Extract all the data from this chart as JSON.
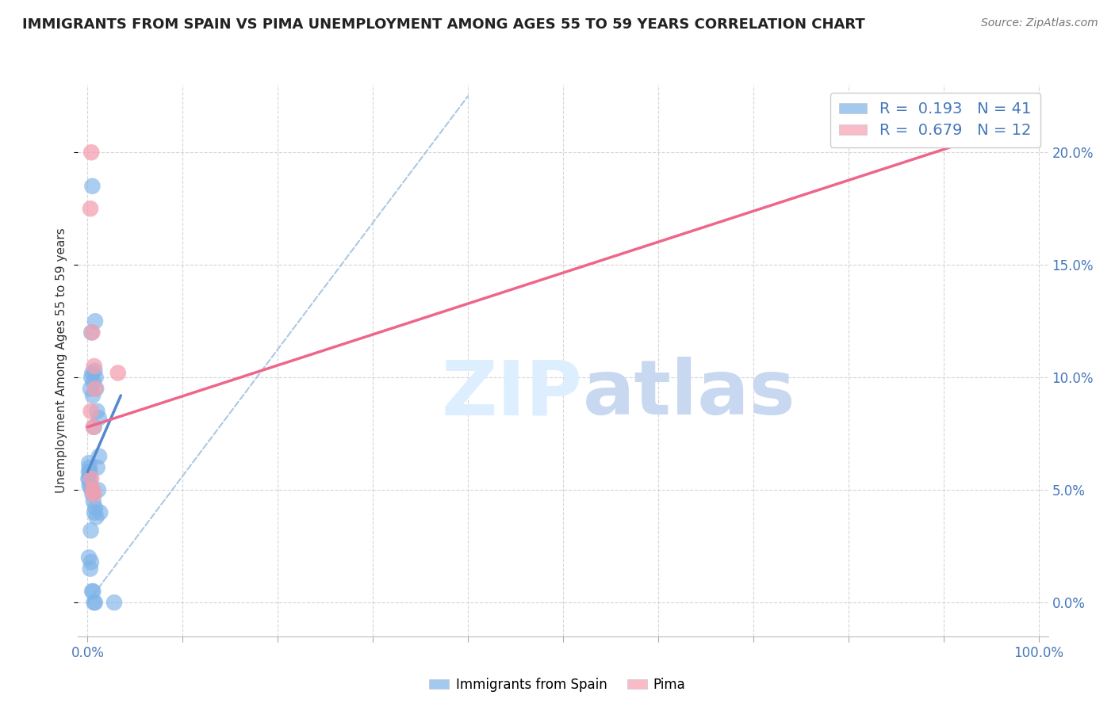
{
  "title": "IMMIGRANTS FROM SPAIN VS PIMA UNEMPLOYMENT AMONG AGES 55 TO 59 YEARS CORRELATION CHART",
  "source": "Source: ZipAtlas.com",
  "ylabel": "Unemployment Among Ages 55 to 59 years",
  "legend_label1": "Immigrants from Spain",
  "legend_label2": "Pima",
  "R1": 0.193,
  "N1": 41,
  "R2": 0.679,
  "N2": 12,
  "xlim": [
    -1.0,
    101.0
  ],
  "ylim": [
    -1.5,
    23.0
  ],
  "x_ticks": [
    0.0,
    10.0,
    20.0,
    30.0,
    40.0,
    50.0,
    60.0,
    70.0,
    80.0,
    90.0,
    100.0
  ],
  "x_tick_labels": [
    "0.0%",
    "",
    "",
    "",
    "",
    "",
    "",
    "",
    "",
    "",
    "100.0%"
  ],
  "y_ticks": [
    0.0,
    5.0,
    10.0,
    15.0,
    20.0
  ],
  "color_blue": "#7EB3E8",
  "color_pink": "#F4A0B0",
  "color_blue_line": "#5588CC",
  "color_pink_line": "#EE6688",
  "color_dashed": "#99BBDD",
  "color_title": "#222222",
  "color_source": "#777777",
  "color_watermark": "#DDEEFF",
  "blue_points_x": [
    0.5,
    0.8,
    0.4,
    0.6,
    0.9,
    1.2,
    0.5,
    0.4,
    0.3,
    0.55,
    0.7,
    0.75,
    0.85,
    1.0,
    0.2,
    0.25,
    0.22,
    0.32,
    0.42,
    0.52,
    0.62,
    0.72,
    0.82,
    0.92,
    1.02,
    1.12,
    1.22,
    1.32,
    0.15,
    0.12,
    0.08,
    0.18,
    0.28,
    0.38,
    0.48,
    0.58,
    0.68,
    0.78,
    2.8,
    0.14,
    0.35
  ],
  "blue_points_y": [
    18.5,
    12.5,
    12.0,
    9.8,
    9.5,
    8.2,
    10.2,
    10.0,
    9.5,
    9.2,
    7.8,
    10.3,
    10.0,
    8.5,
    6.0,
    5.8,
    5.5,
    5.2,
    5.0,
    4.8,
    4.5,
    4.0,
    4.2,
    3.8,
    6.0,
    5.0,
    6.5,
    4.0,
    6.2,
    5.8,
    5.5,
    5.2,
    1.5,
    1.8,
    0.5,
    0.5,
    0.0,
    0.0,
    0.0,
    2.0,
    3.2
  ],
  "pink_points_x": [
    0.4,
    0.3,
    0.5,
    0.7,
    3.2,
    0.6,
    0.55,
    0.65,
    0.8,
    0.4,
    90.0,
    0.35
  ],
  "pink_points_y": [
    20.0,
    17.5,
    12.0,
    10.5,
    10.2,
    7.8,
    5.0,
    4.8,
    9.5,
    5.5,
    21.0,
    8.5
  ],
  "blue_trend_x": [
    0.0,
    3.5
  ],
  "blue_trend_y": [
    5.8,
    9.2
  ],
  "pink_line_x0": 0.0,
  "pink_line_y0": 7.8,
  "pink_line_x1": 100.0,
  "pink_line_y1": 21.5,
  "dashed_x0": 0.0,
  "dashed_y0": 0.0,
  "dashed_x1": 40.0,
  "dashed_y1": 22.5
}
